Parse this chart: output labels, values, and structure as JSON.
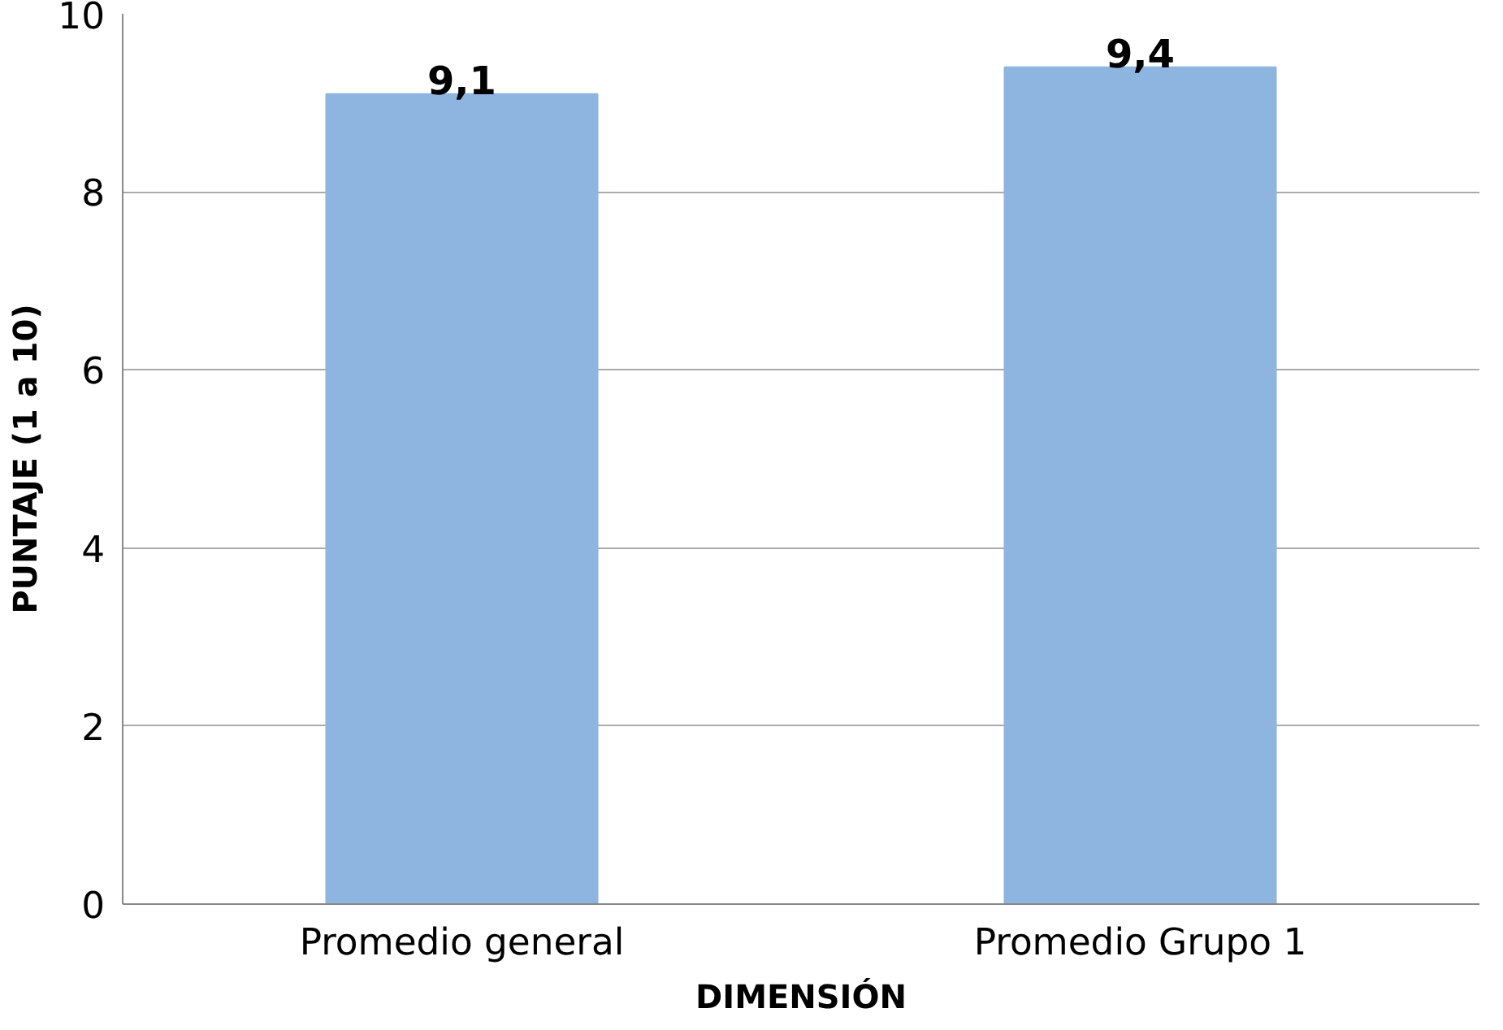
{
  "chart_data": {
    "type": "bar",
    "xlabel": "DIMENSIÓN",
    "ylabel": "PUNTAJE (1 a 10)",
    "categories": [
      "Promedio general",
      "Promedio Grupo 1"
    ],
    "values": [
      9.1,
      9.4
    ],
    "value_labels": [
      "9,1",
      "9,4"
    ],
    "color": "#8eb4e0",
    "ylim": [
      0,
      10
    ],
    "yticks": [
      0,
      2,
      4,
      6,
      8,
      10
    ],
    "grid": "y"
  }
}
